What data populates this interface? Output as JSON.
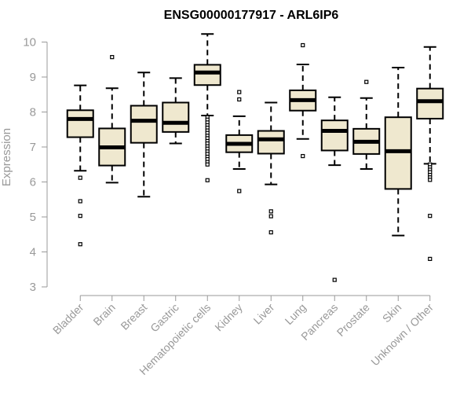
{
  "chart_data": {
    "type": "box",
    "title": "ENSG00000177917 - ARL6IP6",
    "xlabel": "",
    "ylabel": "Expression",
    "ylim": [
      3,
      10
    ],
    "yticks": [
      3,
      4,
      5,
      6,
      7,
      8,
      9,
      10
    ],
    "box_fill": "#efe8cf",
    "categories": [
      "Bladder",
      "Brain",
      "Breast",
      "Gastric",
      "Hematopoietic cells",
      "Kidney",
      "Liver",
      "Lung",
      "Pancreas",
      "Prostate",
      "Skin",
      "Unknown / Other"
    ],
    "boxes": [
      {
        "q1": 7.28,
        "median": 7.8,
        "q3": 8.05,
        "whisker_low": 6.32,
        "whisker_high": 8.76,
        "outliers": [
          6.12,
          5.45,
          5.03,
          4.22
        ]
      },
      {
        "q1": 6.47,
        "median": 6.99,
        "q3": 7.53,
        "whisker_low": 5.98,
        "whisker_high": 8.68,
        "outliers": [
          9.57
        ]
      },
      {
        "q1": 7.12,
        "median": 7.75,
        "q3": 8.18,
        "whisker_low": 5.58,
        "whisker_high": 9.13,
        "outliers": []
      },
      {
        "q1": 7.43,
        "median": 7.69,
        "q3": 8.27,
        "whisker_low": 7.1,
        "whisker_high": 8.97,
        "outliers": []
      },
      {
        "q1": 8.77,
        "median": 9.13,
        "q3": 9.35,
        "whisker_low": 7.9,
        "whisker_high": 10.23,
        "outliers": [
          7.85,
          7.78,
          7.7,
          7.62,
          7.55,
          7.47,
          7.4,
          7.32,
          7.25,
          7.17,
          7.1,
          7.02,
          6.95,
          6.87,
          6.8,
          6.72,
          6.65,
          6.57,
          6.5,
          6.05
        ]
      },
      {
        "q1": 6.85,
        "median": 7.09,
        "q3": 7.34,
        "whisker_low": 6.37,
        "whisker_high": 7.88,
        "outliers": [
          8.57,
          8.36,
          5.74
        ]
      },
      {
        "q1": 6.81,
        "median": 7.22,
        "q3": 7.46,
        "whisker_low": 5.93,
        "whisker_high": 8.27,
        "outliers": [
          5.16,
          5.02,
          4.56
        ]
      },
      {
        "q1": 8.04,
        "median": 8.34,
        "q3": 8.62,
        "whisker_low": 7.23,
        "whisker_high": 9.36,
        "outliers": [
          9.91,
          6.74
        ]
      },
      {
        "q1": 6.9,
        "median": 7.46,
        "q3": 7.76,
        "whisker_low": 6.48,
        "whisker_high": 8.42,
        "outliers": [
          3.2
        ]
      },
      {
        "q1": 6.8,
        "median": 7.15,
        "q3": 7.52,
        "whisker_low": 6.37,
        "whisker_high": 8.4,
        "outliers": [
          8.86
        ]
      },
      {
        "q1": 5.8,
        "median": 6.88,
        "q3": 7.85,
        "whisker_low": 4.47,
        "whisker_high": 9.27,
        "outliers": []
      },
      {
        "q1": 7.81,
        "median": 8.31,
        "q3": 8.67,
        "whisker_low": 6.52,
        "whisker_high": 9.86,
        "outliers": [
          6.5,
          6.42,
          6.35,
          6.28,
          6.2,
          6.13,
          6.06,
          5.03,
          3.8
        ]
      }
    ]
  }
}
